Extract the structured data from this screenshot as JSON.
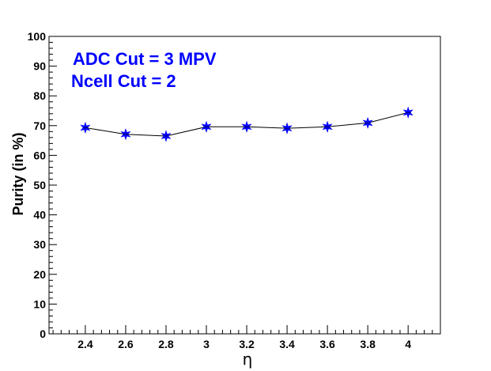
{
  "chart_data": {
    "type": "line",
    "title": "",
    "xlabel": "η",
    "ylabel": "Purity (in %)",
    "xlim": [
      2.22,
      4.16
    ],
    "ylim": [
      0,
      100
    ],
    "x_ticks": [
      "2.4",
      "2.6",
      "2.8",
      "3",
      "3.2",
      "3.4",
      "3.6",
      "3.8",
      "4"
    ],
    "x_tick_values": [
      2.4,
      2.6,
      2.8,
      3.0,
      3.2,
      3.4,
      3.6,
      3.8,
      4.0
    ],
    "y_ticks": [
      "0",
      "10",
      "20",
      "30",
      "40",
      "50",
      "60",
      "70",
      "80",
      "90",
      "100"
    ],
    "y_tick_values": [
      0,
      10,
      20,
      30,
      40,
      50,
      60,
      70,
      80,
      90,
      100
    ],
    "grid": false,
    "series": [
      {
        "x": [
          2.4,
          2.6,
          2.8,
          3.0,
          3.2,
          3.4,
          3.6,
          3.8,
          4.0
        ],
        "y": [
          69.3,
          67.1,
          66.5,
          69.6,
          69.6,
          69.1,
          69.6,
          70.9,
          74.4
        ],
        "color": "#0000ff",
        "marker": "star",
        "line_color": "#000000"
      }
    ],
    "annotations": [
      "ADC Cut = 3 MPV",
      "Ncell Cut = 2"
    ]
  }
}
